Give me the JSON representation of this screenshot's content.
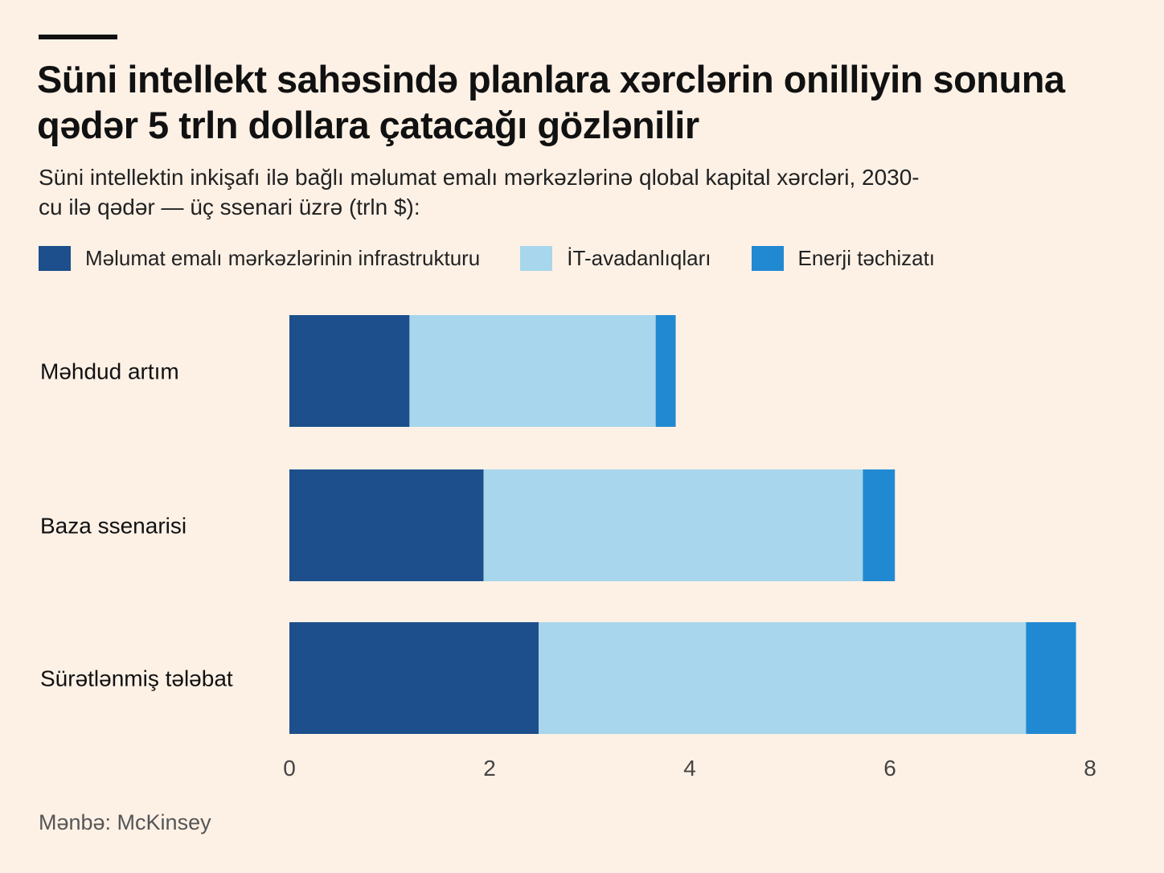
{
  "title": "Süni intellekt sahəsində planlara xərclərin onilliyin sonuna qədər 5 trln dollara çatacağı gözlənilir",
  "subtitle": "Süni intellektin inkişafı ilə bağlı məlumat emalı mərkəzlərinə qlobal kapital xərcləri, 2030-cu ilə qədər — üç ssenari üzrə (trln $):",
  "source": "Mənbə: McKinsey",
  "chart_data": {
    "type": "bar",
    "orientation": "horizontal",
    "stacked": true,
    "categories": [
      "Məhdud artım",
      "Baza ssenarisi",
      "Sürətlənmiş tələbat"
    ],
    "series": [
      {
        "name": "Məlumat emalı mərkəzlərinin infrastrukturu",
        "color": "#1c4f8b",
        "values": [
          1.2,
          1.94,
          2.49
        ]
      },
      {
        "name": "İT-avadanlıqları",
        "color": "#a8d6ec",
        "values": [
          2.46,
          3.79,
          4.87
        ]
      },
      {
        "name": "Enerji təchizatı",
        "color": "#2189d2",
        "values": [
          0.2,
          0.32,
          0.5
        ]
      }
    ],
    "xlim": [
      0,
      8
    ],
    "xticks": [
      "0",
      "2",
      "4",
      "6",
      "8"
    ],
    "grid": false,
    "legend": "top"
  }
}
